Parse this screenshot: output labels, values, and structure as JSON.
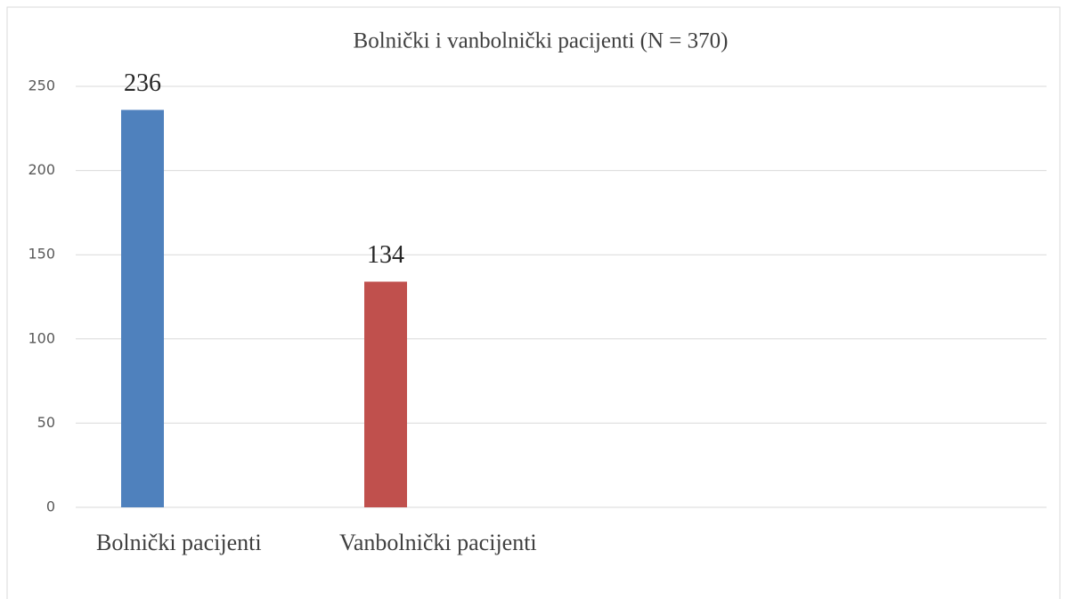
{
  "chart_data": {
    "type": "bar",
    "title": "Bolnički i vanbolnički pacijenti (N = 370)",
    "categories": [
      "Bolnički pacijenti",
      "Vanbolnički pacijenti"
    ],
    "values": [
      236,
      134
    ],
    "colors": [
      "#4f81bd",
      "#c0504d"
    ],
    "ylim": [
      0,
      250
    ],
    "yticks": [
      0,
      50,
      100,
      150,
      200,
      250
    ],
    "grid": true
  }
}
